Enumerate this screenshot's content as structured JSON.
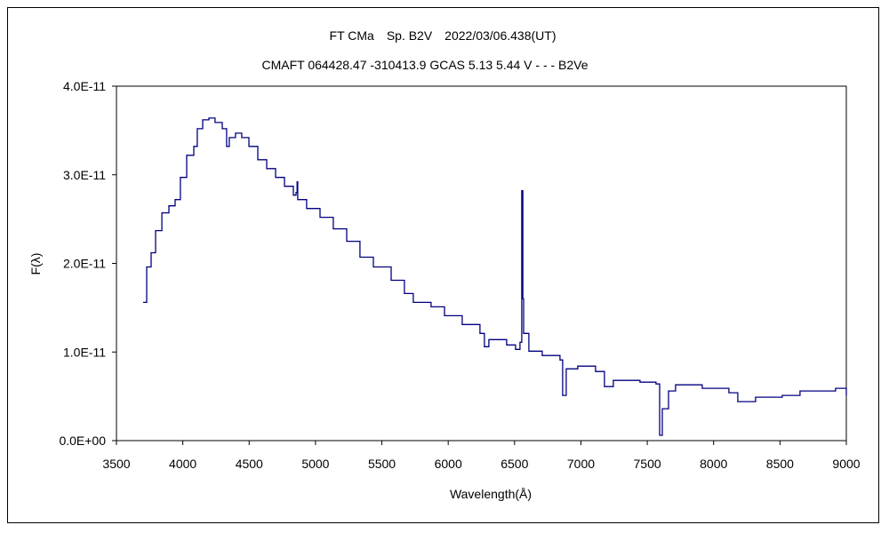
{
  "chart_data": {
    "type": "line",
    "title": "FT CMa　Sp. B2V　2022/03/06.438(UT)",
    "subtitle": "CMAFT 064428.47 -310413.9 GCAS 5.13 5.44 V - - - B2Ve",
    "xlabel": "Wavelength(Å)",
    "ylabel": "F(λ)",
    "xlim": [
      3500,
      9000
    ],
    "ylim": [
      0,
      4e-11
    ],
    "x_ticks": [
      3500,
      4000,
      4500,
      5000,
      5500,
      6000,
      6500,
      7000,
      7500,
      8000,
      8500,
      9000
    ],
    "x_tick_labels": [
      "3500",
      "4000",
      "4500",
      "5000",
      "5500",
      "6000",
      "6500",
      "7000",
      "7500",
      "8000",
      "8500",
      "9000"
    ],
    "y_ticks": [
      0,
      1e-11,
      2e-11,
      3e-11,
      4e-11
    ],
    "y_tick_labels": [
      "0.0E+00",
      "1.0E-11",
      "2.0E-11",
      "3.0E-11",
      "4.0E-11"
    ],
    "grid": false,
    "line_color": "#000080",
    "series": [
      {
        "name": "FT CMa",
        "unit_scale": 1e-11,
        "x": [
          3701,
          3728,
          3761,
          3795,
          3842,
          3895,
          3942,
          3982,
          4029,
          4083,
          4109,
          4150,
          4197,
          4243,
          4297,
          4330,
          4350,
          4397,
          4444,
          4498,
          4565,
          4632,
          4699,
          4766,
          4833,
          4853,
          4861,
          4866,
          4933,
          5034,
          5134,
          5235,
          5335,
          5436,
          5570,
          5670,
          5737,
          5871,
          5972,
          6105,
          6239,
          6273,
          6306,
          6440,
          6507,
          6541,
          6554,
          6562,
          6568,
          6608,
          6708,
          6842,
          6862,
          6889,
          6976,
          7110,
          7177,
          7244,
          7445,
          7566,
          7593,
          7613,
          7660,
          7713,
          7914,
          8115,
          8182,
          8316,
          8517,
          8651,
          8919,
          9000
        ],
        "y": [
          1.56,
          1.96,
          2.12,
          2.37,
          2.57,
          2.65,
          2.72,
          2.97,
          3.22,
          3.32,
          3.52,
          3.62,
          3.64,
          3.59,
          3.52,
          3.32,
          3.42,
          3.47,
          3.42,
          3.32,
          3.17,
          3.07,
          2.97,
          2.87,
          2.77,
          2.8,
          2.92,
          2.72,
          2.62,
          2.52,
          2.39,
          2.25,
          2.07,
          1.96,
          1.81,
          1.66,
          1.56,
          1.51,
          1.41,
          1.31,
          1.21,
          1.06,
          1.14,
          1.08,
          1.03,
          1.11,
          2.82,
          1.6,
          1.21,
          1.01,
          0.96,
          0.91,
          0.51,
          0.81,
          0.84,
          0.78,
          0.61,
          0.68,
          0.66,
          0.64,
          0.06,
          0.36,
          0.56,
          0.63,
          0.59,
          0.54,
          0.44,
          0.49,
          0.51,
          0.56,
          0.59,
          0.51
        ]
      }
    ]
  }
}
